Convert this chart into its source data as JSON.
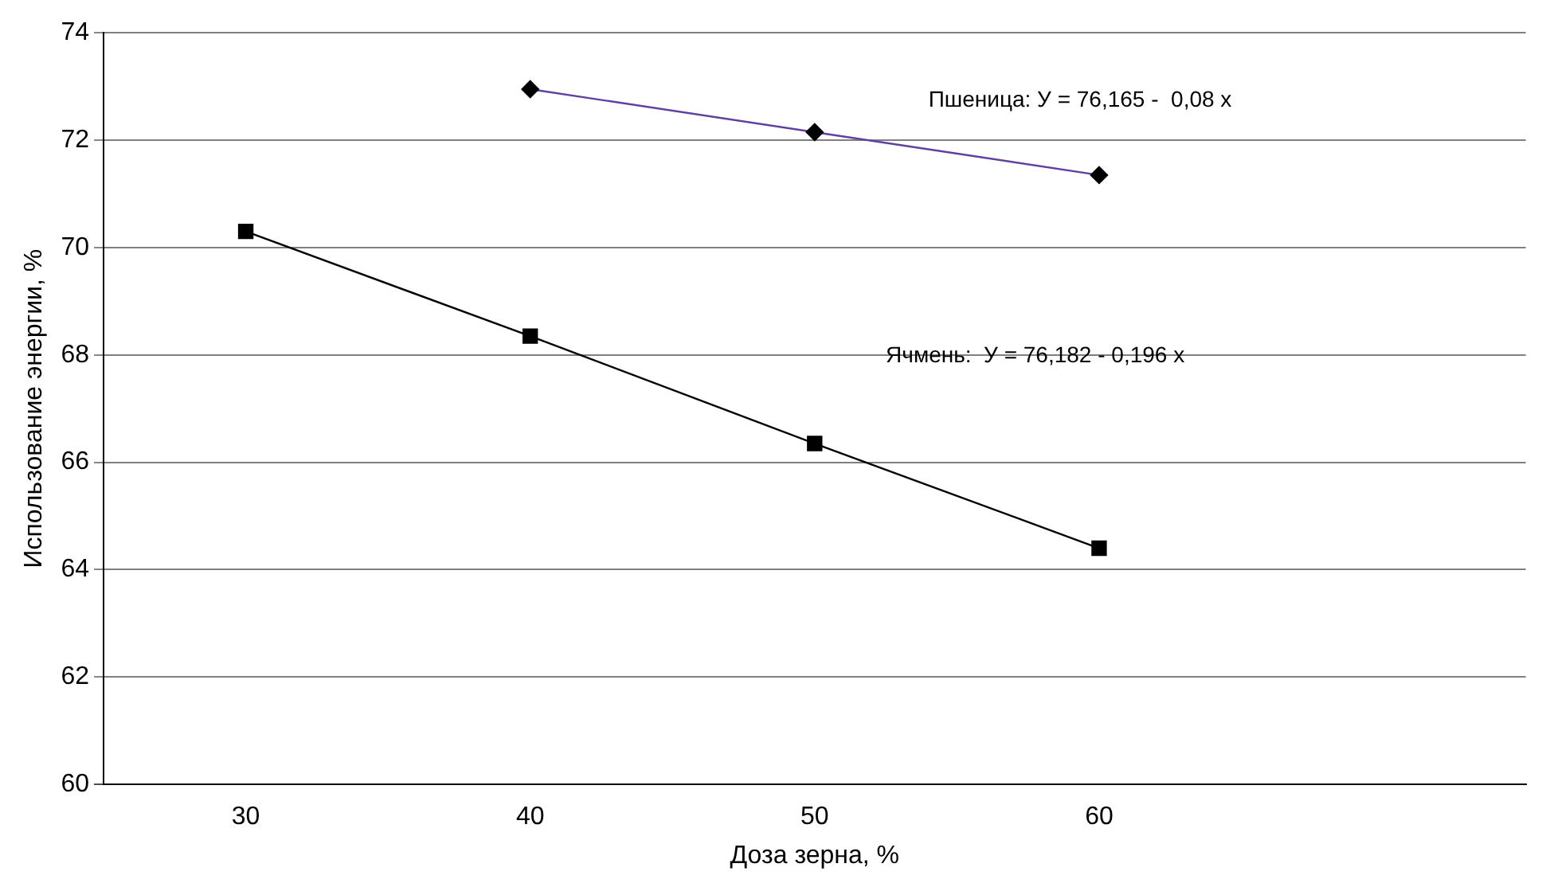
{
  "chart_data": {
    "type": "line",
    "xlabel": "Доза зерна, %",
    "ylabel": "Использование энергии, %",
    "categories": [
      "30",
      "40",
      "50",
      "60",
      null
    ],
    "series": [
      {
        "color": "#6040a0",
        "marker": "diamond",
        "values": [
          null,
          72.95,
          72.15,
          71.35,
          null
        ]
      },
      {
        "color": "#000000",
        "marker": "square",
        "values": [
          70.3,
          68.35,
          66.35,
          64.4,
          null
        ]
      }
    ],
    "ylim": [
      60,
      74
    ],
    "yticks": [
      60,
      62,
      64,
      66,
      68,
      70,
      72,
      74
    ],
    "grid": "y",
    "legend": false,
    "annotations": [
      "Пшеница: У = 76,165 -  0,08 х",
      "Ячмень:  У = 76,182 - 0,196 х"
    ]
  }
}
